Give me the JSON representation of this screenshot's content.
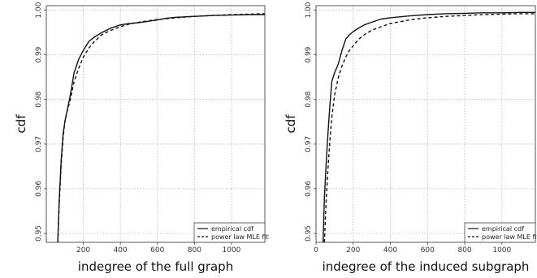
{
  "chart_data": [
    {
      "type": "line",
      "xlabel": "indegree of the full graph",
      "ylabel": "cdf",
      "xlim": [
        0,
        1180
      ],
      "ylim": [
        0.948,
        1.001
      ],
      "xticks": [
        200,
        400,
        600,
        800,
        1000
      ],
      "xtick_labels": [
        "200",
        "400",
        "600",
        "800",
        "1000"
      ],
      "yticks": [
        0.95,
        0.96,
        0.97,
        0.98,
        0.99,
        1.0
      ],
      "ytick_labels": [
        "0.95",
        "0.96",
        "0.97",
        "0.98",
        "0.99",
        "1.00"
      ],
      "grid": true,
      "legend_position": "bottom-right",
      "series": [
        {
          "name": "empirical cdf",
          "style": "solid",
          "x": [
            62,
            70,
            80,
            90,
            100,
            110,
            130,
            150,
            175,
            200,
            230,
            260,
            300,
            350,
            400,
            450,
            500,
            550,
            600,
            650,
            700,
            800,
            900,
            1000,
            1100,
            1180
          ],
          "y": [
            0.948,
            0.958,
            0.966,
            0.972,
            0.975,
            0.977,
            0.981,
            0.986,
            0.989,
            0.991,
            0.993,
            0.994,
            0.995,
            0.996,
            0.9967,
            0.997,
            0.9972,
            0.9975,
            0.9978,
            0.9982,
            0.9984,
            0.9986,
            0.9988,
            0.9989,
            0.999,
            0.999
          ]
        },
        {
          "name": "power law MLE fit",
          "style": "dashed",
          "x": [
            62,
            70,
            80,
            90,
            100,
            110,
            130,
            150,
            175,
            200,
            230,
            260,
            300,
            350,
            400,
            450,
            500,
            550,
            600,
            650,
            700,
            800,
            900,
            1000,
            1100,
            1180
          ],
          "y": [
            0.948,
            0.957,
            0.965,
            0.971,
            0.975,
            0.977,
            0.98,
            0.984,
            0.987,
            0.9895,
            0.9915,
            0.993,
            0.9945,
            0.9955,
            0.9963,
            0.9969,
            0.9973,
            0.9976,
            0.9979,
            0.9981,
            0.9983,
            0.9986,
            0.9988,
            0.999,
            0.9991,
            0.9992
          ]
        }
      ]
    },
    {
      "type": "line",
      "xlabel": "indegree of the induced subgraph",
      "ylabel": "cdf",
      "xlim": [
        0,
        1180
      ],
      "ylim": [
        0.948,
        1.001
      ],
      "xticks": [
        0,
        200,
        400,
        600,
        800,
        1000
      ],
      "xtick_labels": [
        "0",
        "200",
        "400",
        "600",
        "800",
        "1000"
      ],
      "yticks": [
        0.95,
        0.96,
        0.97,
        0.98,
        0.99,
        1.0
      ],
      "ytick_labels": [
        "0.95",
        "0.96",
        "0.97",
        "0.98",
        "0.99",
        "1.00"
      ],
      "grid": true,
      "legend_position": "bottom-right",
      "series": [
        {
          "name": "empirical cdf",
          "style": "solid",
          "x": [
            38,
            45,
            55,
            65,
            75,
            85,
            100,
            120,
            140,
            160,
            180,
            200,
            230,
            260,
            300,
            350,
            400,
            450,
            500,
            600,
            700,
            800,
            900,
            1000,
            1100,
            1180
          ],
          "y": [
            0.948,
            0.958,
            0.966,
            0.973,
            0.979,
            0.984,
            0.986,
            0.988,
            0.991,
            0.9935,
            0.9945,
            0.9952,
            0.996,
            0.9967,
            0.9973,
            0.998,
            0.9983,
            0.9985,
            0.9987,
            0.999,
            0.9992,
            0.9993,
            0.9994,
            0.9994,
            0.9995,
            0.9995
          ]
        },
        {
          "name": "power law MLE fit",
          "style": "dashed",
          "x": [
            45,
            55,
            65,
            75,
            85,
            100,
            120,
            140,
            160,
            180,
            200,
            230,
            260,
            300,
            350,
            400,
            450,
            500,
            600,
            700,
            800,
            900,
            1000,
            1100,
            1180
          ],
          "y": [
            0.948,
            0.958,
            0.965,
            0.971,
            0.976,
            0.981,
            0.985,
            0.9875,
            0.9895,
            0.991,
            0.992,
            0.9935,
            0.9945,
            0.9955,
            0.9963,
            0.997,
            0.9974,
            0.9978,
            0.9983,
            0.9986,
            0.9988,
            0.999,
            0.9991,
            0.9992,
            0.9992
          ]
        }
      ]
    }
  ]
}
